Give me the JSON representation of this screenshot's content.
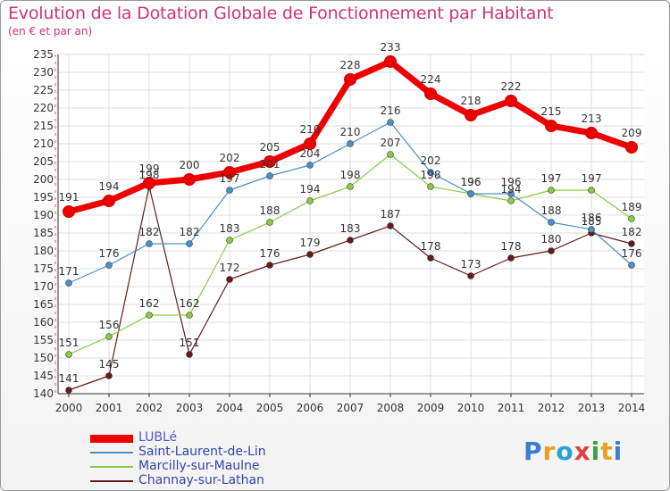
{
  "title": "Evolution de la Dotation Globale de Fonctionnement par Habitant",
  "subtitle": "(en € et par an)",
  "logo_text": "Proxiti",
  "chart_data": {
    "type": "line",
    "title": "Evolution de la Dotation Globale de Fonctionnement par Habitant",
    "subtitle": "(en € et par an)",
    "xlabel": "",
    "ylabel": "",
    "x": [
      "2000",
      "2001",
      "2002",
      "2003",
      "2004",
      "2005",
      "2006",
      "2007",
      "2008",
      "2009",
      "2010",
      "2011",
      "2012",
      "2013",
      "2014"
    ],
    "ylim": [
      140,
      235
    ],
    "yticks": [
      140,
      145,
      150,
      155,
      160,
      165,
      170,
      175,
      180,
      185,
      190,
      195,
      200,
      205,
      210,
      215,
      220,
      225,
      230,
      235
    ],
    "grid": true,
    "legend_position": "bottom-left",
    "series": [
      {
        "name": "LUBLé",
        "color": "#ee0000",
        "values": [
          191,
          194,
          199,
          200,
          202,
          205,
          210,
          228,
          233,
          224,
          218,
          222,
          215,
          213,
          209
        ]
      },
      {
        "name": "Saint-Laurent-de-Lin",
        "color": "#4a90c8",
        "values": [
          171,
          176,
          182,
          182,
          197,
          201,
          204,
          210,
          216,
          202,
          196,
          196,
          188,
          186,
          176
        ]
      },
      {
        "name": "Marcilly-sur-Maulne",
        "color": "#88cc44",
        "values": [
          151,
          156,
          162,
          162,
          183,
          188,
          194,
          198,
          207,
          198,
          196,
          194,
          197,
          197,
          189
        ]
      },
      {
        "name": "Channay-sur-Lathan",
        "color": "#661a1a",
        "values": [
          141,
          145,
          198,
          151,
          172,
          176,
          179,
          183,
          187,
          178,
          173,
          178,
          180,
          185,
          182
        ]
      }
    ]
  }
}
